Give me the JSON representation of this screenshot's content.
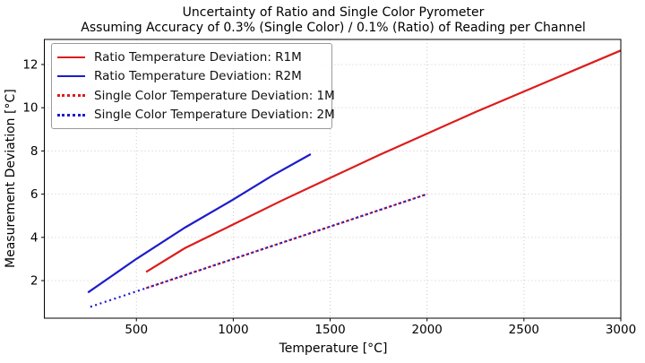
{
  "title": {
    "line1": "Uncertainty of Ratio and Single Color Pyrometer",
    "line2": "Assuming Accuracy of 0.3% (Single Color) / 0.1% (Ratio) of Reading per Channel"
  },
  "colors": {
    "red": "#dd1c1c",
    "blue": "#1c1ccc",
    "grid": "#c9c9c9",
    "spine": "#000000",
    "tick_text": "#000000"
  },
  "legend": {
    "items": [
      {
        "label": "Ratio Temperature Deviation: R1M",
        "color": "red",
        "style": "solid"
      },
      {
        "label": "Ratio Temperature Deviation: R2M",
        "color": "blue",
        "style": "solid"
      },
      {
        "label": "Single Color Temperature Deviation: 1M",
        "color": "red",
        "style": "dotted"
      },
      {
        "label": "Single Color Temperature Deviation: 2M",
        "color": "blue",
        "style": "dotted"
      }
    ]
  },
  "chart_data": {
    "type": "line",
    "title": "Uncertainty of Ratio and Single Color Pyrometer",
    "subtitle": "Assuming Accuracy of 0.3% (Single Color) / 0.1% (Ratio) of Reading per Channel",
    "xlabel": "Temperature [°C]",
    "ylabel": "Measurement Deviation [°C]",
    "xlim": [
      25,
      3000
    ],
    "ylim": [
      0.26,
      13.16
    ],
    "x_ticks": [
      500,
      1000,
      1500,
      2000,
      2500,
      3000
    ],
    "y_ticks": [
      2,
      4,
      6,
      8,
      10,
      12
    ],
    "grid": true,
    "legend_position": "upper left",
    "series": [
      {
        "name": "Ratio Temperature Deviation: R1M",
        "color": "red",
        "style": "solid",
        "points": [
          [
            550,
            2.4
          ],
          [
            750,
            3.5
          ],
          [
            1000,
            4.6
          ],
          [
            1250,
            5.7
          ],
          [
            1500,
            6.75
          ],
          [
            1750,
            7.8
          ],
          [
            2000,
            8.8
          ],
          [
            2250,
            9.8
          ],
          [
            2500,
            10.75
          ],
          [
            2750,
            11.7
          ],
          [
            3000,
            12.65
          ]
        ]
      },
      {
        "name": "Ratio Temperature Deviation: R2M",
        "color": "blue",
        "style": "solid",
        "points": [
          [
            250,
            1.45
          ],
          [
            500,
            3.0
          ],
          [
            750,
            4.45
          ],
          [
            1000,
            5.75
          ],
          [
            1200,
            6.85
          ],
          [
            1400,
            7.85
          ]
        ]
      },
      {
        "name": "Single Color Temperature Deviation: 1M",
        "color": "red",
        "style": "dotted",
        "points": [
          [
            550,
            1.65
          ],
          [
            1000,
            3.0
          ],
          [
            1500,
            4.5
          ],
          [
            2000,
            6.0
          ]
        ]
      },
      {
        "name": "Single Color Temperature Deviation: 2M",
        "color": "blue",
        "style": "dotted",
        "points": [
          [
            250,
            0.75
          ],
          [
            1000,
            3.0
          ],
          [
            1500,
            4.5
          ],
          [
            2000,
            6.0
          ]
        ]
      }
    ]
  }
}
